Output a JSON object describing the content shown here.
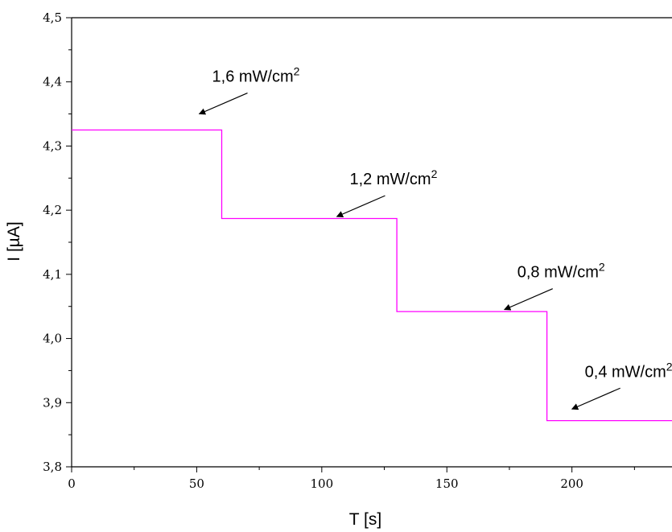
{
  "chart_data": {
    "type": "line",
    "title": "",
    "xlabel": "T [s]",
    "ylabel": "I [µA]",
    "xlim": [
      0,
      240
    ],
    "ylim": [
      3.8,
      4.5
    ],
    "x_ticks": [
      0,
      50,
      100,
      150,
      200
    ],
    "x_tick_labels": [
      "0",
      "50",
      "100",
      "150",
      "200"
    ],
    "y_ticks": [
      3.8,
      3.9,
      4.0,
      4.1,
      4.2,
      4.3,
      4.4,
      4.5
    ],
    "y_tick_labels": [
      "3,8",
      "3,9",
      "4,0",
      "4,1",
      "4,2",
      "4,3",
      "4,4",
      "4,5"
    ],
    "grid": false,
    "line_color": "#ff00ff",
    "series": [
      {
        "step": true,
        "x": [
          0,
          60,
          60,
          130,
          130,
          190,
          190,
          240
        ],
        "y": [
          4.325,
          4.325,
          4.187,
          4.187,
          4.042,
          4.042,
          3.872,
          3.872
        ]
      }
    ],
    "annotations": [
      {
        "text": "1,6 mW/cm",
        "sup": "2",
        "point_x": 51,
        "point_y": 4.35
      },
      {
        "text": "1,2 mW/cm",
        "sup": "2",
        "point_x": 106,
        "point_y": 4.19
      },
      {
        "text": "0,8 mW/cm",
        "sup": "2",
        "point_x": 173,
        "point_y": 4.045
      },
      {
        "text": "0,4 mW/cm",
        "sup": "2",
        "point_x": 200,
        "point_y": 3.89
      }
    ]
  }
}
